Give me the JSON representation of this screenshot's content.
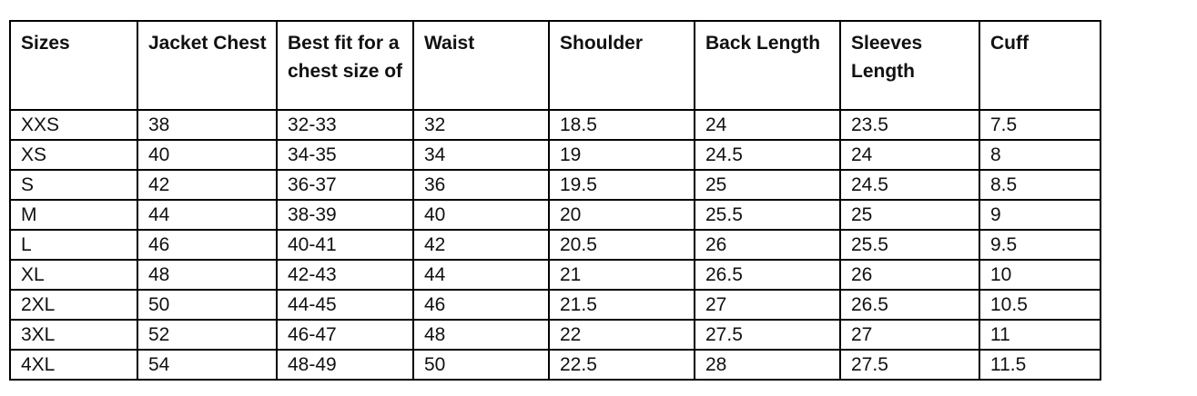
{
  "colors": {
    "accent_red": "#e0191e",
    "accent_blue": "#1f497d",
    "border": "#000000",
    "background": "#ffffff"
  },
  "table": {
    "sizes_header": "Sizes",
    "columns": [
      "Jacket Chest",
      "Best fit for a chest size of",
      "Waist",
      "Shoulder",
      "Back Length",
      "Sleeves Length",
      "Cuff"
    ],
    "red_column_index": 1,
    "rows": [
      {
        "size": "XXS",
        "values": [
          "38",
          "32-33",
          "32",
          "18.5",
          "24",
          "23.5",
          "7.5"
        ]
      },
      {
        "size": "XS",
        "values": [
          "40",
          "34-35",
          "34",
          "19",
          "24.5",
          "24",
          "8"
        ]
      },
      {
        "size": "S",
        "values": [
          "42",
          "36-37",
          "36",
          "19.5",
          "25",
          "24.5",
          "8.5"
        ]
      },
      {
        "size": "M",
        "values": [
          "44",
          "38-39",
          "40",
          "20",
          "25.5",
          "25",
          "9"
        ]
      },
      {
        "size": "L",
        "values": [
          "46",
          "40-41",
          "42",
          "20.5",
          "26",
          "25.5",
          "9.5"
        ]
      },
      {
        "size": "XL",
        "values": [
          "48",
          "42-43",
          "44",
          "21",
          "26.5",
          "26",
          "10"
        ]
      },
      {
        "size": "2XL",
        "values": [
          "50",
          "44-45",
          "46",
          "21.5",
          "27",
          "26.5",
          "10.5"
        ]
      },
      {
        "size": "3XL",
        "values": [
          "52",
          "46-47",
          "48",
          "22",
          "27.5",
          "27",
          "11"
        ]
      },
      {
        "size": "4XL",
        "values": [
          "54",
          "48-49",
          "50",
          "22.5",
          "28",
          "27.5",
          "11.5"
        ]
      }
    ]
  }
}
